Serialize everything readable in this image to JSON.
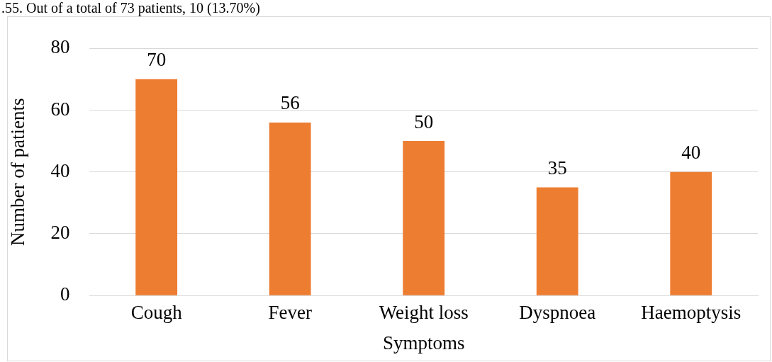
{
  "chart_data": {
    "type": "bar",
    "xlabel": "Symptoms",
    "ylabel": "Number of patients",
    "categories": [
      "Cough",
      "Fever",
      "Weight loss",
      "Dyspnoea",
      "Haemoptysis"
    ],
    "values": [
      70,
      56,
      50,
      35,
      40
    ],
    "color": "#ed7d31",
    "ylim": [
      0,
      80
    ],
    "yticks": [
      0,
      20,
      40,
      60,
      80
    ],
    "grid": "y",
    "data_labels": true,
    "annotations": [
      ".55. Out of a total of 73 patients, 10 (13.70%)"
    ]
  }
}
